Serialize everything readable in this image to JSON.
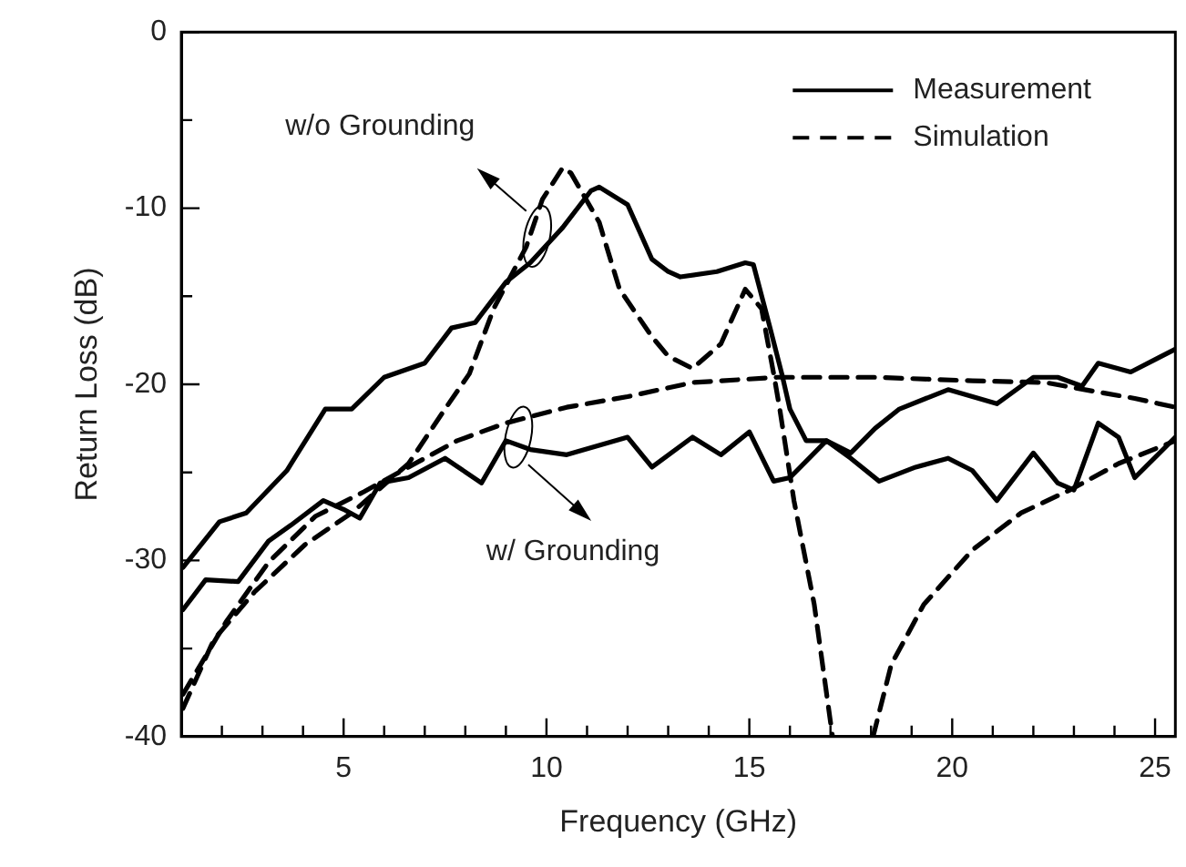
{
  "chart_data": {
    "type": "line",
    "xlabel": "Frequency (GHz)",
    "ylabel": "Return Loss (dB)",
    "xlim": [
      1,
      25.5
    ],
    "ylim": [
      -40,
      0
    ],
    "xticks": [
      {
        "value": 2,
        "label": null
      },
      {
        "value": 3,
        "label": null
      },
      {
        "value": 4,
        "label": null
      },
      5,
      {
        "value": 6,
        "label": null
      },
      {
        "value": 7,
        "label": null
      },
      {
        "value": 8,
        "label": null
      },
      {
        "value": 9,
        "label": null
      },
      10,
      {
        "value": 11,
        "label": null
      },
      {
        "value": 12,
        "label": null
      },
      {
        "value": 13,
        "label": null
      },
      {
        "value": 14,
        "label": null
      },
      15,
      {
        "value": 16,
        "label": null
      },
      {
        "value": 17,
        "label": null
      },
      {
        "value": 18,
        "label": null
      },
      {
        "value": 19,
        "label": null
      },
      20,
      {
        "value": 21,
        "label": null
      },
      {
        "value": 22,
        "label": null
      },
      {
        "value": 23,
        "label": null
      },
      {
        "value": 24,
        "label": null
      },
      25
    ],
    "yticks": [
      -40,
      {
        "value": -35,
        "label": null
      },
      -30,
      {
        "value": -25,
        "label": null
      },
      -20,
      {
        "value": -15,
        "label": null
      },
      -10,
      {
        "value": -5,
        "label": null
      },
      0
    ],
    "grid": false,
    "legend": "top right",
    "marker": "none",
    "series": [
      {
        "name": "Measurement",
        "color": "#000000",
        "line_style": "solid",
        "x": [
          1.04,
          1.94,
          2.6,
          3.6,
          4.55,
          5.2,
          6.0,
          7.0,
          7.66,
          8.24,
          9.0,
          9.6,
          10.4,
          11.1,
          11.3,
          12.0,
          12.6,
          13.0,
          13.3,
          14.2,
          14.9,
          15.1,
          15.5,
          15.8,
          16.0,
          16.4,
          16.9,
          17.5,
          18.1,
          18.7,
          19.9,
          21.1,
          22.0,
          22.6,
          23.2,
          23.6,
          24.4,
          25.5
        ],
        "values": [
          -30.4,
          -27.8,
          -27.3,
          -24.9,
          -21.4,
          -21.4,
          -19.6,
          -18.8,
          -16.8,
          -16.5,
          -14.2,
          -13.1,
          -11.1,
          -9.0,
          -8.8,
          -9.8,
          -12.9,
          -13.6,
          -13.9,
          -13.6,
          -13.1,
          -13.2,
          -16.7,
          -19.4,
          -21.4,
          -23.2,
          -23.2,
          -23.9,
          -22.5,
          -21.4,
          -20.3,
          -21.1,
          -19.6,
          -19.6,
          -20.1,
          -18.8,
          -19.3,
          -18.0
        ]
      },
      {
        "color": "#000000",
        "line_style": "solid",
        "x": [
          1.04,
          1.6,
          2.4,
          3.15,
          3.7,
          4.5,
          5.0,
          5.4,
          5.9,
          6.6,
          7.5,
          8.4,
          9.0,
          9.6,
          10.5,
          12.0,
          12.6,
          13.6,
          14.3,
          15.0,
          15.6,
          16.0,
          16.9,
          17.5,
          18.2,
          19.1,
          19.9,
          20.5,
          21.1,
          22.0,
          22.6,
          23.0,
          23.6,
          24.1,
          24.5,
          25.5
        ],
        "values": [
          -32.8,
          -31.1,
          -31.2,
          -28.9,
          -28.0,
          -26.6,
          -27.1,
          -27.6,
          -25.6,
          -25.3,
          -24.2,
          -25.6,
          -23.2,
          -23.7,
          -24.0,
          -23.0,
          -24.7,
          -23.0,
          -24.0,
          -22.7,
          -25.5,
          -25.3,
          -23.2,
          -24.2,
          -25.5,
          -24.7,
          -24.2,
          -24.9,
          -26.6,
          -23.9,
          -25.6,
          -26.0,
          -22.2,
          -23.0,
          -25.3,
          -23.0
        ]
      },
      {
        "name": "Simulation",
        "color": "#000000",
        "line_style": "dashed",
        "x": [
          1.04,
          1.8,
          2.8,
          4.05,
          5.2,
          6.6,
          7.5,
          8.1,
          8.7,
          9.5,
          9.9,
          10.4,
          10.6,
          11.3,
          11.8,
          12.6,
          13.0,
          13.6,
          14.3,
          14.9,
          15.3,
          15.6,
          15.75,
          16.1,
          16.6,
          17.05,
          17.5,
          18.05,
          18.5,
          19.3,
          20.5,
          21.7,
          22.9,
          24.1,
          25.5
        ],
        "values": [
          -38.4,
          -34.5,
          -31.8,
          -29.1,
          -27.3,
          -24.5,
          -21.4,
          -19.4,
          -15.7,
          -12.2,
          -9.5,
          -7.7,
          -8.0,
          -10.8,
          -14.6,
          -17.3,
          -18.4,
          -19.1,
          -17.7,
          -14.6,
          -15.7,
          -19.4,
          -21.4,
          -26.6,
          -32.5,
          -40,
          null,
          -40,
          -35.9,
          -32.5,
          -29.4,
          -27.3,
          -26.0,
          -24.5,
          -23.2
        ]
      },
      {
        "color": "#000000",
        "line_style": "dashed",
        "x": [
          1.04,
          2.1,
          3.15,
          4.3,
          5.5,
          6.6,
          7.8,
          9.0,
          10.5,
          12.0,
          13.6,
          15.7,
          18.1,
          20.5,
          22.3,
          23.5,
          24.5,
          25.5
        ],
        "values": [
          -37.6,
          -33.5,
          -30.1,
          -27.5,
          -26.1,
          -24.7,
          -23.2,
          -22.2,
          -21.3,
          -20.7,
          -19.9,
          -19.6,
          -19.6,
          -19.8,
          -19.9,
          -20.4,
          -20.8,
          -21.3
        ]
      }
    ],
    "annotations": [
      "w/o Grounding",
      "w/ Grounding"
    ]
  }
}
